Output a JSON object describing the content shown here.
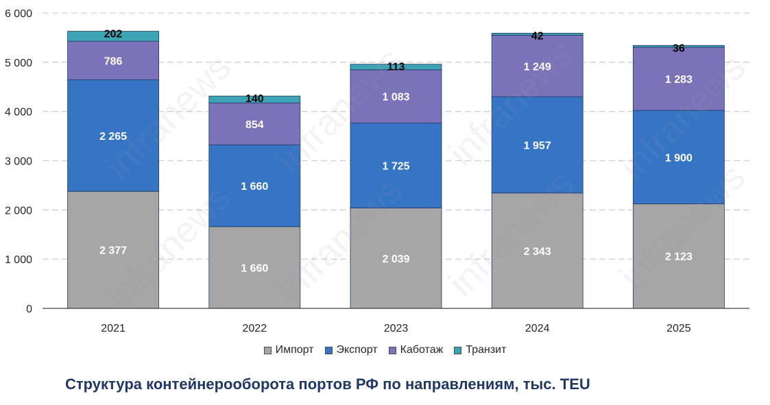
{
  "chart_data": {
    "type": "bar",
    "stacked": true,
    "title": "Структура контейнерооборота портов РФ по направлениям, тыс. TEU",
    "categories": [
      "2021",
      "2022",
      "2023",
      "2024",
      "2025"
    ],
    "series": [
      {
        "name": "Импорт",
        "color": "#a6a6a6",
        "label_color": "#ffffff",
        "values": [
          2377,
          1660,
          2039,
          2343,
          2123
        ],
        "labels": [
          "2 377",
          "1 660",
          "2 039",
          "2 343",
          "2 123"
        ]
      },
      {
        "name": "Экспорт",
        "color": "#3674c4",
        "label_color": "#ffffff",
        "values": [
          2265,
          1660,
          1725,
          1957,
          1900
        ],
        "labels": [
          "2 265",
          "1 660",
          "1 725",
          "1 957",
          "1 900"
        ]
      },
      {
        "name": "Каботаж",
        "color": "#7b72b8",
        "label_color": "#ffffff",
        "values": [
          786,
          854,
          1083,
          1249,
          1283
        ],
        "labels": [
          "786",
          "854",
          "1 083",
          "1 249",
          "1 283"
        ]
      },
      {
        "name": "Транзит",
        "color": "#3fa3b6",
        "label_color": "#000000",
        "values": [
          202,
          140,
          113,
          42,
          36
        ],
        "labels": [
          "202",
          "140",
          "113",
          "42",
          "36"
        ]
      }
    ],
    "ylim": [
      0,
      6000
    ],
    "yticks": [
      0,
      1000,
      2000,
      3000,
      4000,
      5000,
      6000
    ],
    "ytick_labels": [
      "0",
      "1 000",
      "2 000",
      "3 000",
      "4 000",
      "5 000",
      "6 000"
    ],
    "grid": true,
    "legend_position": "bottom"
  },
  "watermark_text": "infranews"
}
